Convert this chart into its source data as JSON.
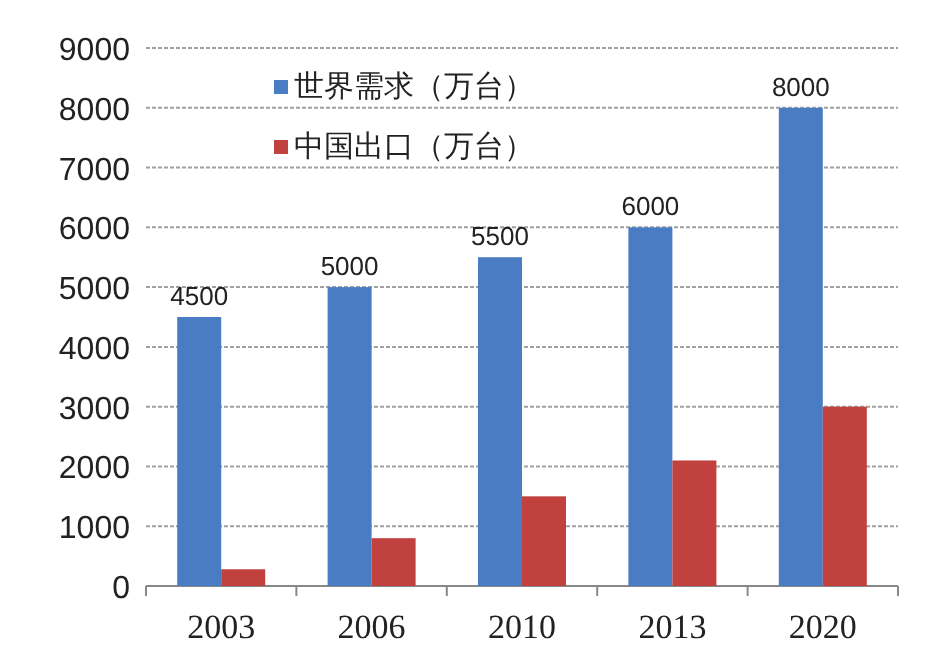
{
  "chart_data": {
    "type": "bar",
    "categories": [
      "2003",
      "2006",
      "2010",
      "2013",
      "2020"
    ],
    "series": [
      {
        "name": "世界需求（万台）",
        "color": "#4a7cc4",
        "values": [
          4500,
          5000,
          5500,
          6000,
          8000
        ],
        "value_labels": [
          "4500",
          "5000",
          "5500",
          "6000",
          "8000"
        ]
      },
      {
        "name": "中国出口（万台）",
        "color": "#c0413e",
        "values": [
          280,
          800,
          1500,
          2100,
          3000
        ]
      }
    ],
    "ylim": [
      0,
      9000
    ],
    "yticks": [
      0,
      1000,
      2000,
      3000,
      4000,
      5000,
      6000,
      7000,
      8000,
      9000
    ],
    "grid": "y",
    "legend": "top left"
  }
}
